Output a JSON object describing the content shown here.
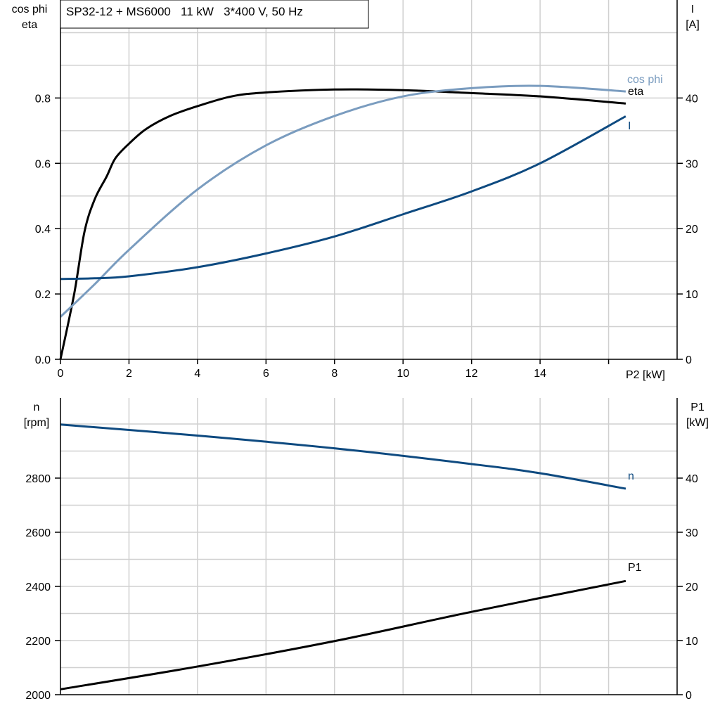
{
  "chart_data": [
    {
      "type": "line",
      "title": "SP32-12 + MS6000   11 kW   3*400 V, 50 Hz",
      "xlabel": "P2 [kW]",
      "xlim": [
        0,
        18
      ],
      "xticks": [
        0,
        2,
        4,
        6,
        8,
        10,
        12,
        14
      ],
      "ylabel_left": [
        "cos phi",
        "eta"
      ],
      "ylim_left": [
        0,
        1.1
      ],
      "yticks_left": [
        "0.0",
        "0.2",
        "0.4",
        "0.6",
        "0.8"
      ],
      "ylabel_right": [
        "I",
        "[A]"
      ],
      "ylim_right": [
        0,
        55
      ],
      "yticks_right": [
        "0",
        "10",
        "20",
        "30",
        "40"
      ],
      "grid": true,
      "series": [
        {
          "name": "eta",
          "axis": "left",
          "color": "#000000",
          "x": [
            0,
            0.4,
            0.7,
            1.0,
            1.35,
            1.6,
            2,
            2.5,
            3.2,
            4,
            5,
            6,
            8,
            10,
            12,
            14,
            16.5
          ],
          "y": [
            0,
            0.2,
            0.39,
            0.49,
            0.56,
            0.615,
            0.66,
            0.705,
            0.745,
            0.775,
            0.805,
            0.817,
            0.826,
            0.824,
            0.815,
            0.805,
            0.783
          ]
        },
        {
          "name": "cos phi",
          "axis": "left",
          "color": "#7a9cbf",
          "x": [
            0,
            1,
            2,
            4,
            6,
            8,
            10,
            12,
            14,
            16.5
          ],
          "y": [
            0.13,
            0.23,
            0.335,
            0.52,
            0.655,
            0.745,
            0.805,
            0.83,
            0.837,
            0.82
          ]
        },
        {
          "name": "I",
          "axis": "right",
          "color": "#0e4a80",
          "x": [
            0,
            1,
            2,
            4,
            6,
            8,
            10,
            12,
            14,
            16.5
          ],
          "y": [
            12.3,
            12.4,
            12.7,
            14.1,
            16.2,
            18.8,
            22.2,
            25.7,
            30,
            37.2
          ]
        }
      ]
    },
    {
      "type": "line",
      "xlim": [
        0,
        18
      ],
      "ylabel_left": [
        "n",
        "[rpm]"
      ],
      "ylim_left": [
        2000,
        3096
      ],
      "yticks_left": [
        "2000",
        "2200",
        "2400",
        "2600",
        "2800"
      ],
      "ylabel_right": [
        "P1",
        "[kW]"
      ],
      "ylim_right": [
        0,
        54.8
      ],
      "yticks_right": [
        "0",
        "10",
        "20",
        "30",
        "40"
      ],
      "grid": true,
      "series": [
        {
          "name": "n",
          "axis": "left",
          "color": "#0e4a80",
          "x": [
            0,
            4,
            8,
            12,
            14,
            16.5
          ],
          "y": [
            2998,
            2957,
            2910,
            2852,
            2818,
            2761
          ]
        },
        {
          "name": "P1",
          "axis": "right",
          "color": "#000000",
          "x": [
            0,
            4,
            8,
            12,
            16.5
          ],
          "y": [
            1.0,
            5.2,
            9.9,
            15.3,
            21.0
          ]
        }
      ]
    }
  ]
}
